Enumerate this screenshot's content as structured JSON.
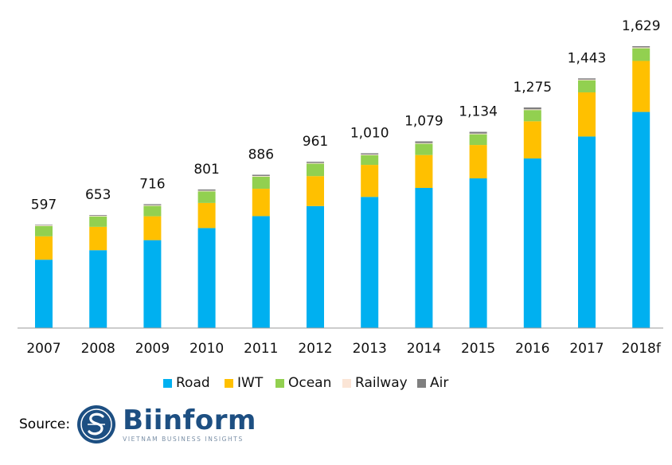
{
  "chart_data": {
    "type": "bar",
    "stacked": true,
    "categories": [
      "2007",
      "2008",
      "2009",
      "2010",
      "2011",
      "2012",
      "2013",
      "2014",
      "2015",
      "2016",
      "2017",
      "2018f"
    ],
    "totals": [
      "597",
      "653",
      "716",
      "801",
      "886",
      "961",
      "1,010",
      "1,079",
      "1,134",
      "1,275",
      "1,443",
      "1,629"
    ],
    "series": [
      {
        "name": "Road",
        "color": "#00b0f0",
        "values": [
          395,
          450,
          508,
          578,
          647,
          705,
          758,
          810,
          865,
          980,
          1107,
          1249
        ]
      },
      {
        "name": "IWT",
        "color": "#ffc000",
        "values": [
          135,
          135,
          138,
          145,
          158,
          173,
          185,
          190,
          193,
          215,
          255,
          295
        ]
      },
      {
        "name": "Ocean",
        "color": "#92d050",
        "values": [
          60,
          60,
          60,
          67,
          70,
          72,
          56,
          65,
          62,
          65,
          70,
          73
        ]
      },
      {
        "name": "Railway",
        "color": "#fbe5d6",
        "values": [
          4,
          4,
          4,
          4,
          4,
          4,
          4,
          4,
          4,
          4,
          4,
          5
        ]
      },
      {
        "name": "Air",
        "color": "#7f7f7f",
        "values": [
          3,
          4,
          6,
          7,
          7,
          7,
          7,
          10,
          10,
          11,
          7,
          7
        ]
      }
    ],
    "ylim": [
      0,
      1629
    ],
    "grid": false,
    "legend_position": "bottom"
  },
  "source": {
    "label": "Source:",
    "brand": "Biinform",
    "tagline": "VIETNAM BUSINESS INSIGHTS"
  }
}
